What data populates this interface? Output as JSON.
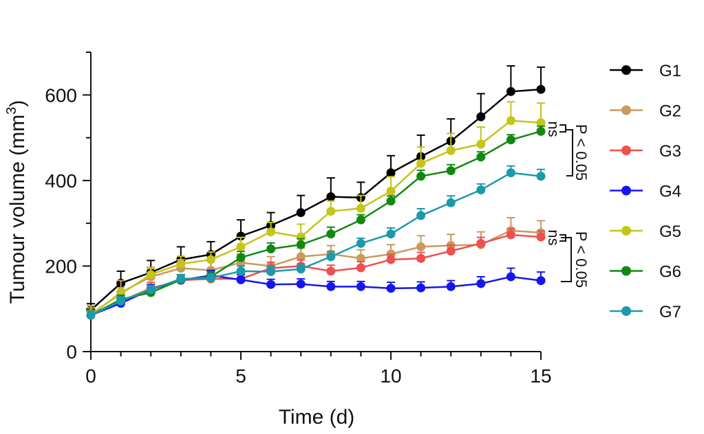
{
  "chart_data": {
    "type": "line",
    "title": "",
    "xlabel": "Time (d)",
    "ylabel_main": "Tumour volume (mm",
    "ylabel_sup": "3",
    "ylabel_close": ")",
    "xlim": [
      0,
      15
    ],
    "ylim": [
      0,
      700
    ],
    "x_ticks": [
      0,
      5,
      10,
      15
    ],
    "y_ticks": [
      0,
      200,
      400,
      600
    ],
    "x_tick_labels": [
      "0",
      "5",
      "10",
      "15"
    ],
    "y_tick_labels": [
      "0",
      "200",
      "400",
      "600"
    ],
    "x": [
      0,
      1,
      2,
      3,
      4,
      5,
      6,
      7,
      8,
      9,
      10,
      11,
      12,
      13,
      14,
      15
    ],
    "series": [
      {
        "name": "G1",
        "color": "#000000",
        "values": [
          97,
          160,
          185,
          215,
          227,
          270,
          295,
          325,
          362,
          360,
          418,
          456,
          492,
          549,
          608,
          613
        ],
        "errors": [
          15,
          28,
          28,
          30,
          30,
          38,
          30,
          40,
          44,
          36,
          40,
          50,
          52,
          54,
          60,
          52
        ]
      },
      {
        "name": "G2",
        "color": "#c89a5c",
        "values": [
          85,
          138,
          175,
          195,
          190,
          208,
          200,
          222,
          228,
          218,
          228,
          245,
          248,
          250,
          283,
          278
        ],
        "errors": [
          22,
          28,
          22,
          20,
          22,
          20,
          22,
          20,
          20,
          20,
          22,
          26,
          26,
          30,
          30,
          28
        ]
      },
      {
        "name": "G3",
        "color": "#ee4f4f",
        "values": [
          85,
          118,
          148,
          167,
          170,
          170,
          195,
          200,
          188,
          196,
          215,
          218,
          235,
          253,
          273,
          268
        ],
        "errors": [
          12,
          12,
          14,
          12,
          12,
          12,
          14,
          14,
          14,
          14,
          12,
          14,
          14,
          14,
          14,
          14
        ]
      },
      {
        "name": "G4",
        "color": "#1515ee",
        "values": [
          85,
          113,
          145,
          167,
          178,
          168,
          157,
          158,
          152,
          152,
          148,
          149,
          152,
          159,
          175,
          166
        ],
        "errors": [
          10,
          10,
          12,
          12,
          12,
          12,
          12,
          12,
          12,
          12,
          14,
          14,
          14,
          16,
          20,
          20
        ]
      },
      {
        "name": "G5",
        "color": "#c4c41a",
        "values": [
          88,
          135,
          180,
          205,
          215,
          245,
          280,
          268,
          328,
          335,
          375,
          440,
          470,
          485,
          540,
          535
        ],
        "errors": [
          14,
          14,
          14,
          18,
          18,
          22,
          22,
          30,
          24,
          30,
          34,
          38,
          40,
          40,
          44,
          46
        ]
      },
      {
        "name": "G6",
        "color": "#118811",
        "values": [
          85,
          122,
          138,
          168,
          175,
          220,
          240,
          250,
          275,
          308,
          352,
          410,
          423,
          455,
          495,
          515
        ],
        "errors": [
          10,
          10,
          10,
          12,
          12,
          14,
          14,
          14,
          16,
          12,
          12,
          14,
          14,
          12,
          12,
          12
        ]
      },
      {
        "name": "G7",
        "color": "#1a9aaa",
        "values": [
          85,
          118,
          145,
          170,
          172,
          188,
          187,
          193,
          222,
          253,
          275,
          318,
          348,
          378,
          418,
          410
        ],
        "errors": [
          10,
          10,
          10,
          10,
          10,
          12,
          12,
          12,
          12,
          12,
          14,
          16,
          16,
          14,
          16,
          16
        ]
      }
    ],
    "annotations": {
      "upper": {
        "ns": "ns",
        "p": "P < 0.05"
      },
      "lower": {
        "ns": "ns",
        "p": "P < 0.05"
      }
    }
  }
}
